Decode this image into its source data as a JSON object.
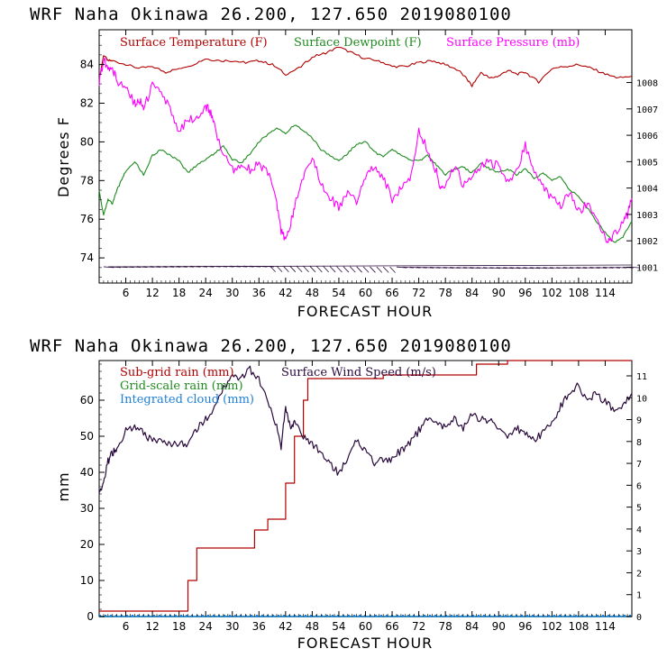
{
  "colors": {
    "temperature": "#b00000",
    "dewpoint": "#1f8a1f",
    "pressure": "#ff00ff",
    "subgrid": "#b00000",
    "gridscale": "#1f8a1f",
    "cloud": "#1e7fd6",
    "wind": "#2a0a3c",
    "barbs": "#2a0a3c"
  },
  "chart_data": [
    {
      "type": "line",
      "title": "WRF   Naha Okinawa  26.200, 127.650  2019080100",
      "xlabel": "FORECAST HOUR",
      "ylabel": "Degrees F",
      "xlim": [
        0,
        120
      ],
      "ylim": [
        72.7,
        85.8
      ],
      "y2lim": [
        1000.4,
        1010.0
      ],
      "xticks": [
        "6",
        "12",
        "18",
        "24",
        "30",
        "36",
        "42",
        "48",
        "54",
        "60",
        "66",
        "72",
        "78",
        "84",
        "90",
        "96",
        "102",
        "108",
        "114"
      ],
      "yticks": [
        "74",
        "76",
        "78",
        "80",
        "82",
        "84"
      ],
      "y2ticks": [
        "1001",
        "1002",
        "1003",
        "1004",
        "1005",
        "1006",
        "1007",
        "1008"
      ],
      "series": [
        {
          "name": "Surface Temperature (F)",
          "axis": "left",
          "x": [
            0,
            1,
            2,
            3,
            6,
            9,
            12,
            15,
            18,
            21,
            24,
            27,
            30,
            33,
            36,
            39,
            42,
            45,
            48,
            51,
            54,
            57,
            60,
            63,
            66,
            69,
            72,
            75,
            78,
            81,
            83,
            84,
            86,
            88,
            90,
            92,
            94,
            96,
            99,
            102,
            105,
            108,
            111,
            114,
            117,
            120
          ],
          "y": [
            83.2,
            84.5,
            84.2,
            84.2,
            84.0,
            83.8,
            83.9,
            83.6,
            83.8,
            84.0,
            84.3,
            84.2,
            84.2,
            84.1,
            84.2,
            84.0,
            83.5,
            83.8,
            84.4,
            84.6,
            84.9,
            84.6,
            84.3,
            84.2,
            83.9,
            83.9,
            84.1,
            84.2,
            84.0,
            83.7,
            83.2,
            82.9,
            83.6,
            83.3,
            83.4,
            83.7,
            83.5,
            83.6,
            83.1,
            83.8,
            83.9,
            84.0,
            83.8,
            83.5,
            83.3,
            83.4
          ]
        },
        {
          "name": "Surface Dewpoint (F)",
          "axis": "left",
          "x": [
            0,
            1,
            2,
            3,
            4,
            5,
            6,
            8,
            10,
            12,
            14,
            16,
            18,
            20,
            22,
            24,
            26,
            28,
            30,
            32,
            34,
            36,
            38,
            40,
            42,
            44,
            46,
            48,
            50,
            52,
            54,
            56,
            58,
            60,
            62,
            64,
            66,
            68,
            70,
            72,
            74,
            76,
            78,
            80,
            82,
            84,
            86,
            88,
            90,
            92,
            94,
            96,
            98,
            100,
            102,
            104,
            106,
            108,
            110,
            112,
            114,
            116,
            118,
            120
          ],
          "y": [
            77.5,
            76.2,
            77.0,
            76.8,
            77.5,
            78.0,
            78.5,
            79.0,
            78.3,
            79.3,
            79.6,
            79.3,
            79.0,
            78.4,
            78.8,
            79.1,
            79.4,
            79.8,
            79.1,
            78.9,
            79.4,
            80.0,
            80.4,
            80.7,
            80.4,
            80.9,
            80.6,
            80.2,
            79.6,
            79.3,
            79.0,
            79.4,
            79.9,
            80.0,
            79.5,
            79.2,
            79.6,
            79.3,
            79.1,
            79.0,
            79.3,
            78.8,
            78.3,
            78.6,
            78.7,
            78.4,
            78.9,
            78.6,
            78.4,
            78.6,
            78.3,
            78.6,
            78.1,
            78.4,
            78.0,
            78.2,
            77.5,
            77.2,
            76.6,
            75.9,
            75.3,
            74.8,
            75.1,
            75.9
          ]
        },
        {
          "name": "Surface Pressure (mb)",
          "axis": "right",
          "x": [
            0,
            1,
            2,
            3,
            4,
            6,
            8,
            9,
            10,
            12,
            14,
            16,
            18,
            20,
            22,
            24,
            25,
            26,
            28,
            30,
            32,
            34,
            36,
            38,
            40,
            41,
            42,
            43,
            44,
            46,
            48,
            50,
            52,
            54,
            56,
            58,
            60,
            62,
            64,
            66,
            68,
            70,
            72,
            74,
            76,
            77,
            78,
            80,
            82,
            84,
            86,
            88,
            90,
            92,
            94,
            96,
            98,
            100,
            102,
            104,
            106,
            108,
            110,
            112,
            114,
            115,
            116,
            118,
            119,
            120
          ],
          "y": [
            1008.0,
            1008.9,
            1008.5,
            1008.5,
            1008.1,
            1007.8,
            1007.2,
            1007.4,
            1007.0,
            1007.9,
            1007.5,
            1007.0,
            1006.2,
            1006.6,
            1006.6,
            1007.1,
            1006.9,
            1006.3,
            1005.3,
            1004.7,
            1004.9,
            1004.7,
            1004.9,
            1004.6,
            1003.4,
            1002.4,
            1002.1,
            1002.5,
            1003.3,
            1004.4,
            1005.2,
            1004.2,
            1003.7,
            1003.2,
            1003.8,
            1003.5,
            1004.4,
            1004.9,
            1004.4,
            1003.6,
            1004.0,
            1004.4,
            1006.1,
            1005.5,
            1004.6,
            1003.9,
            1004.2,
            1004.9,
            1004.1,
            1004.4,
            1004.8,
            1005.0,
            1004.8,
            1004.2,
            1004.7,
            1005.6,
            1004.7,
            1004.1,
            1003.6,
            1003.3,
            1003.8,
            1003.1,
            1003.4,
            1002.8,
            1002.1,
            1002.0,
            1002.3,
            1002.6,
            1003.0,
            1003.6
          ]
        }
      ],
      "wind_barbs": "present along bottom of panel"
    },
    {
      "type": "line",
      "title": "WRF   Naha Okinawa  26.200, 127.650  2019080100",
      "xlabel": "FORECAST HOUR",
      "ylabel": "mm",
      "xlim": [
        0,
        120
      ],
      "ylim": [
        0,
        71
      ],
      "y2lim": [
        0,
        11.7
      ],
      "xticks": [
        "6",
        "12",
        "18",
        "24",
        "30",
        "36",
        "42",
        "48",
        "54",
        "60",
        "66",
        "72",
        "78",
        "84",
        "90",
        "96",
        "102",
        "108",
        "114"
      ],
      "yticks": [
        "0",
        "10",
        "20",
        "30",
        "40",
        "50",
        "60"
      ],
      "y2ticks": [
        "0",
        "1",
        "2",
        "3",
        "4",
        "5",
        "6",
        "7",
        "8",
        "9",
        "10",
        "11"
      ],
      "series": [
        {
          "name": "Sub-grid rain (mm)",
          "axis": "left",
          "step": true,
          "x": [
            0,
            19,
            20,
            22,
            34,
            35,
            37,
            38,
            40,
            42,
            44,
            46,
            47,
            63,
            64,
            84,
            85,
            91,
            92,
            120
          ],
          "y": [
            1.5,
            1.5,
            10,
            19,
            19,
            24,
            24,
            27,
            27,
            37,
            50,
            60,
            66,
            66,
            67,
            67,
            70,
            70,
            71,
            71
          ]
        },
        {
          "name": "Grid-scale rain (mm)",
          "axis": "left",
          "x": [
            0,
            120
          ],
          "y": [
            0,
            0
          ]
        },
        {
          "name": "Integrated cloud (mm)",
          "axis": "left",
          "x": [
            0,
            120
          ],
          "y": [
            0,
            0
          ]
        },
        {
          "name": "Surface Wind Speed (m/s)",
          "axis": "right",
          "x": [
            0,
            1,
            2,
            3,
            4,
            6,
            8,
            10,
            12,
            14,
            16,
            18,
            20,
            22,
            24,
            26,
            28,
            30,
            32,
            34,
            36,
            38,
            40,
            41,
            42,
            43,
            44,
            46,
            48,
            50,
            52,
            54,
            56,
            58,
            60,
            62,
            64,
            66,
            68,
            70,
            72,
            74,
            76,
            78,
            80,
            82,
            84,
            86,
            88,
            90,
            92,
            94,
            96,
            98,
            100,
            102,
            104,
            106,
            108,
            110,
            112,
            114,
            116,
            118,
            120
          ],
          "y": [
            5.5,
            6.1,
            7.1,
            7.5,
            7.6,
            8.5,
            8.6,
            8.4,
            8.0,
            8.0,
            7.9,
            7.9,
            7.8,
            8.6,
            9.0,
            9.6,
            10.4,
            11.0,
            10.9,
            11.3,
            10.8,
            9.8,
            8.7,
            7.7,
            9.6,
            8.7,
            8.9,
            8.2,
            7.9,
            7.5,
            7.0,
            6.5,
            7.3,
            8.0,
            7.5,
            7.0,
            7.2,
            7.2,
            7.6,
            7.9,
            8.5,
            9.0,
            8.8,
            8.7,
            9.0,
            8.6,
            9.2,
            9.0,
            9.0,
            8.5,
            8.3,
            8.6,
            8.4,
            8.1,
            8.4,
            8.9,
            9.6,
            10.3,
            10.6,
            9.8,
            10.2,
            9.8,
            9.5,
            9.6,
            10.2
          ]
        }
      ]
    }
  ]
}
